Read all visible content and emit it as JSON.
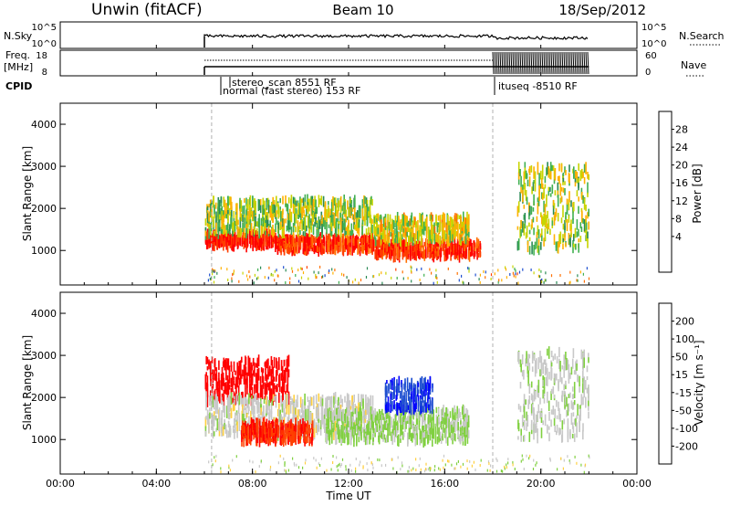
{
  "header": {
    "station": "Unwin (fitACF)",
    "beam": "Beam 10",
    "date": "18/Sep/2012"
  },
  "top_panels": {
    "nsky_label": "N.Sky",
    "nsky_ticks": [
      "10^5",
      "10^0"
    ],
    "nsearch_label": "N.Search",
    "nsearch_ticks": [
      "10^5",
      "10^0"
    ],
    "freq_label_line1": "Freq.",
    "freq_label_line2": "[MHz]",
    "freq_ticks": [
      "18",
      "8"
    ],
    "nave_label": "Nave",
    "nave_ticks": [
      "60",
      "0"
    ],
    "cpid_label": "CPID",
    "cpid_entries": [
      {
        "text": "stereo_scan 8551 RF"
      },
      {
        "text": "normal (fast stereo) 153 RF"
      },
      {
        "text": "ituseq -8510 RF"
      }
    ]
  },
  "panels": {
    "power": {
      "ylabel": "Slant Range [km]",
      "yticks": [
        "4000",
        "3000",
        "2000",
        "1000"
      ],
      "cbar_label": "Power [dB]",
      "cbar_ticks": [
        "28",
        "24",
        "20",
        "16",
        "12",
        "8",
        "4"
      ],
      "colors": [
        "#0000ff",
        "#1f4fd0",
        "#2a8a55",
        "#40b050",
        "#c8d400",
        "#ffb000",
        "#ff7000",
        "#ff4000",
        "#ff0000"
      ]
    },
    "velocity": {
      "ylabel": "Slant Range [km]",
      "yticks": [
        "4000",
        "3000",
        "2000",
        "1000"
      ],
      "cbar_label": "Velocity [m s⁻¹]",
      "cbar_ticks": [
        "200",
        "100",
        "50",
        "15",
        "-15",
        "-50",
        "-100",
        "-200"
      ],
      "colors": [
        "#0000ff",
        "#1f4fd0",
        "#2a8a55",
        "#80d040",
        "#c8c8c8",
        "#ffd040",
        "#ff8000",
        "#ff4000",
        "#ff0000"
      ]
    }
  },
  "xaxis": {
    "label": "Time UT",
    "ticks": [
      "00:00",
      "04:00",
      "08:00",
      "12:00",
      "16:00",
      "20:00",
      "00:00"
    ]
  },
  "chart_data": {
    "type": "heatmap",
    "title": "Unwin (fitACF) Beam 10 18/Sep/2012",
    "xlabel": "Time UT",
    "ylabel": "Slant Range [km]",
    "xlim_hours": [
      0,
      24
    ],
    "ylim_km": [
      180,
      4500
    ],
    "data_extent_hours": [
      6.0,
      22.0
    ],
    "mode_changes_hours": [
      6.3,
      18.0
    ],
    "power_db_range": [
      0,
      30
    ],
    "velocity_range": [
      -200,
      200
    ],
    "power_backscatter_bands": [
      {
        "start_h": 6.0,
        "end_h": 9.0,
        "range_km": [
          1100,
          1400
        ],
        "power_db": 28
      },
      {
        "start_h": 9.0,
        "end_h": 13.0,
        "range_km": [
          1000,
          1300
        ],
        "power_db": 26
      },
      {
        "start_h": 13.0,
        "end_h": 17.5,
        "range_km": [
          850,
          1200
        ],
        "power_db": 26
      },
      {
        "start_h": 6.0,
        "end_h": 13.0,
        "range_km": [
          1400,
          2200
        ],
        "power_db": 14
      },
      {
        "start_h": 13.0,
        "end_h": 17.0,
        "range_km": [
          1200,
          1800
        ],
        "power_db": 16
      },
      {
        "start_h": 19.0,
        "end_h": 22.0,
        "range_km": [
          1000,
          3000
        ],
        "power_db": 14
      }
    ],
    "velocity_backscatter_bands": [
      {
        "start_h": 6.0,
        "end_h": 9.5,
        "range_km": [
          1900,
          2900
        ],
        "velocity": -200
      },
      {
        "start_h": 6.0,
        "end_h": 13.0,
        "range_km": [
          1100,
          2000
        ],
        "velocity": 0
      },
      {
        "start_h": 7.5,
        "end_h": 10.5,
        "range_km": [
          950,
          1400
        ],
        "velocity": -150
      },
      {
        "start_h": 11.0,
        "end_h": 17.0,
        "range_km": [
          950,
          1700
        ],
        "velocity": 30
      },
      {
        "start_h": 13.5,
        "end_h": 15.5,
        "range_km": [
          1700,
          2400
        ],
        "velocity": 150
      },
      {
        "start_h": 19.0,
        "end_h": 22.0,
        "range_km": [
          1000,
          3100
        ],
        "velocity": 10
      }
    ]
  }
}
